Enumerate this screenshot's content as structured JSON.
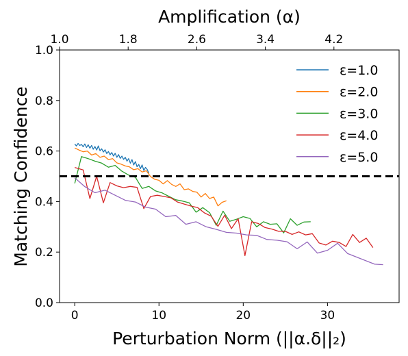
{
  "chart_data": {
    "type": "line",
    "xlabel": "Perturbation Norm (||α.δ||₂)",
    "ylabel": "Matching Confidence",
    "top_xlabel": "Amplification (α)",
    "xlim": [
      -1.8,
      38.5
    ],
    "ylim": [
      0.0,
      1.0
    ],
    "xticks": [
      0,
      10,
      20,
      30
    ],
    "xtick_labels": [
      "0",
      "10",
      "20",
      "30"
    ],
    "yticks": [
      0.0,
      0.2,
      0.4,
      0.6,
      0.8,
      1.0
    ],
    "ytick_labels": [
      "0.0",
      "0.2",
      "0.4",
      "0.6",
      "0.8",
      "1.0"
    ],
    "top_xticks": [
      1.0,
      1.8,
      2.6,
      3.4,
      4.2
    ],
    "top_xtick_labels": [
      "1.0",
      "1.8",
      "2.6",
      "3.4",
      "4.2"
    ],
    "top_xlim": [
      1.0,
      4.96
    ],
    "threshold": {
      "y": 0.5,
      "style": "dashed",
      "color": "#000000"
    },
    "grid": false,
    "legend_position": "top-right",
    "series": [
      {
        "name": "ε=1.0",
        "color": "#1f77b4",
        "points": [
          [
            0.0,
            0.628
          ],
          [
            0.2,
            0.62
          ],
          [
            0.4,
            0.63
          ],
          [
            0.6,
            0.622
          ],
          [
            0.8,
            0.626
          ],
          [
            1.0,
            0.617
          ],
          [
            1.2,
            0.628
          ],
          [
            1.4,
            0.614
          ],
          [
            1.6,
            0.625
          ],
          [
            1.8,
            0.611
          ],
          [
            2.0,
            0.622
          ],
          [
            2.2,
            0.607
          ],
          [
            2.4,
            0.618
          ],
          [
            2.6,
            0.604
          ],
          [
            2.8,
            0.62
          ],
          [
            3.0,
            0.601
          ],
          [
            3.2,
            0.609
          ],
          [
            3.4,
            0.596
          ],
          [
            3.6,
            0.605
          ],
          [
            3.8,
            0.59
          ],
          [
            4.0,
            0.598
          ],
          [
            4.2,
            0.585
          ],
          [
            4.4,
            0.594
          ],
          [
            4.6,
            0.58
          ],
          [
            4.8,
            0.591
          ],
          [
            5.0,
            0.575
          ],
          [
            5.2,
            0.586
          ],
          [
            5.4,
            0.571
          ],
          [
            5.6,
            0.58
          ],
          [
            5.8,
            0.567
          ],
          [
            6.0,
            0.575
          ],
          [
            6.2,
            0.56
          ],
          [
            6.4,
            0.57
          ],
          [
            6.6,
            0.552
          ],
          [
            6.8,
            0.566
          ],
          [
            7.0,
            0.545
          ],
          [
            7.2,
            0.558
          ],
          [
            7.4,
            0.538
          ],
          [
            7.6,
            0.547
          ],
          [
            7.8,
            0.53
          ],
          [
            8.0,
            0.545
          ],
          [
            8.2,
            0.523
          ],
          [
            8.4,
            0.535
          ],
          [
            8.6,
            0.527
          ],
          [
            8.8,
            0.512
          ]
        ]
      },
      {
        "name": "ε=2.0",
        "color": "#ff7f0e",
        "points": [
          [
            0.0,
            0.612
          ],
          [
            0.5,
            0.604
          ],
          [
            1.0,
            0.597
          ],
          [
            1.5,
            0.6
          ],
          [
            2.0,
            0.584
          ],
          [
            2.5,
            0.59
          ],
          [
            3.0,
            0.575
          ],
          [
            3.5,
            0.58
          ],
          [
            4.0,
            0.566
          ],
          [
            4.5,
            0.57
          ],
          [
            5.0,
            0.553
          ],
          [
            5.5,
            0.548
          ],
          [
            6.0,
            0.541
          ],
          [
            6.5,
            0.537
          ],
          [
            7.0,
            0.526
          ],
          [
            7.5,
            0.53
          ],
          [
            8.0,
            0.517
          ],
          [
            8.5,
            0.522
          ],
          [
            9.0,
            0.499
          ],
          [
            9.5,
            0.488
          ],
          [
            10.0,
            0.484
          ],
          [
            10.5,
            0.47
          ],
          [
            11.0,
            0.483
          ],
          [
            11.5,
            0.468
          ],
          [
            12.0,
            0.46
          ],
          [
            12.5,
            0.47
          ],
          [
            13.0,
            0.447
          ],
          [
            13.5,
            0.45
          ],
          [
            14.0,
            0.44
          ],
          [
            14.5,
            0.437
          ],
          [
            15.0,
            0.418
          ],
          [
            15.5,
            0.432
          ],
          [
            16.0,
            0.412
          ],
          [
            16.5,
            0.418
          ],
          [
            17.0,
            0.383
          ],
          [
            17.5,
            0.397
          ],
          [
            18.0,
            0.403
          ]
        ]
      },
      {
        "name": "ε=3.0",
        "color": "#2ca02c",
        "points": [
          [
            0.0,
            0.472
          ],
          [
            0.8,
            0.578
          ],
          [
            1.6,
            0.57
          ],
          [
            2.4,
            0.56
          ],
          [
            3.2,
            0.552
          ],
          [
            4.0,
            0.536
          ],
          [
            4.8,
            0.543
          ],
          [
            5.6,
            0.52
          ],
          [
            6.4,
            0.505
          ],
          [
            7.2,
            0.496
          ],
          [
            8.0,
            0.452
          ],
          [
            8.8,
            0.46
          ],
          [
            9.6,
            0.442
          ],
          [
            10.4,
            0.434
          ],
          [
            11.2,
            0.42
          ],
          [
            12.0,
            0.407
          ],
          [
            12.8,
            0.402
          ],
          [
            13.6,
            0.395
          ],
          [
            14.4,
            0.358
          ],
          [
            15.2,
            0.376
          ],
          [
            16.0,
            0.356
          ],
          [
            16.8,
            0.306
          ],
          [
            17.6,
            0.362
          ],
          [
            18.4,
            0.322
          ],
          [
            19.2,
            0.33
          ],
          [
            20.0,
            0.34
          ],
          [
            20.8,
            0.333
          ],
          [
            21.6,
            0.3
          ],
          [
            22.4,
            0.32
          ],
          [
            23.2,
            0.31
          ],
          [
            24.0,
            0.312
          ],
          [
            24.8,
            0.276
          ],
          [
            25.6,
            0.332
          ],
          [
            26.4,
            0.306
          ],
          [
            27.2,
            0.319
          ],
          [
            28.0,
            0.32
          ]
        ]
      },
      {
        "name": "ε=4.0",
        "color": "#d62728",
        "points": [
          [
            0.0,
            0.535
          ],
          [
            1.0,
            0.525
          ],
          [
            1.8,
            0.412
          ],
          [
            2.6,
            0.5
          ],
          [
            3.4,
            0.395
          ],
          [
            4.2,
            0.475
          ],
          [
            5.0,
            0.462
          ],
          [
            5.8,
            0.455
          ],
          [
            6.6,
            0.46
          ],
          [
            7.4,
            0.456
          ],
          [
            8.2,
            0.372
          ],
          [
            9.0,
            0.42
          ],
          [
            9.8,
            0.425
          ],
          [
            10.6,
            0.42
          ],
          [
            11.4,
            0.415
          ],
          [
            12.2,
            0.398
          ],
          [
            13.0,
            0.39
          ],
          [
            13.8,
            0.382
          ],
          [
            14.6,
            0.376
          ],
          [
            15.4,
            0.355
          ],
          [
            16.2,
            0.342
          ],
          [
            17.0,
            0.302
          ],
          [
            17.8,
            0.346
          ],
          [
            18.6,
            0.293
          ],
          [
            19.4,
            0.332
          ],
          [
            20.2,
            0.186
          ],
          [
            21.0,
            0.32
          ],
          [
            21.8,
            0.313
          ],
          [
            22.6,
            0.297
          ],
          [
            23.4,
            0.291
          ],
          [
            24.2,
            0.282
          ],
          [
            25.0,
            0.282
          ],
          [
            25.8,
            0.27
          ],
          [
            26.6,
            0.28
          ],
          [
            27.4,
            0.268
          ],
          [
            28.2,
            0.273
          ],
          [
            29.0,
            0.236
          ],
          [
            29.8,
            0.228
          ],
          [
            30.6,
            0.243
          ],
          [
            31.4,
            0.238
          ],
          [
            32.2,
            0.222
          ],
          [
            33.0,
            0.27
          ],
          [
            33.8,
            0.238
          ],
          [
            34.6,
            0.255
          ],
          [
            35.4,
            0.218
          ]
        ]
      },
      {
        "name": "ε=5.0",
        "color": "#9467bd",
        "points": [
          [
            0.0,
            0.494
          ],
          [
            1.2,
            0.459
          ],
          [
            2.4,
            0.435
          ],
          [
            3.6,
            0.445
          ],
          [
            4.8,
            0.425
          ],
          [
            6.0,
            0.405
          ],
          [
            7.2,
            0.398
          ],
          [
            8.4,
            0.378
          ],
          [
            9.6,
            0.37
          ],
          [
            10.8,
            0.34
          ],
          [
            12.0,
            0.345
          ],
          [
            13.2,
            0.31
          ],
          [
            14.4,
            0.32
          ],
          [
            15.6,
            0.3
          ],
          [
            16.8,
            0.29
          ],
          [
            18.0,
            0.278
          ],
          [
            19.2,
            0.275
          ],
          [
            20.4,
            0.268
          ],
          [
            21.6,
            0.266
          ],
          [
            22.8,
            0.25
          ],
          [
            24.0,
            0.247
          ],
          [
            25.2,
            0.241
          ],
          [
            26.4,
            0.213
          ],
          [
            27.6,
            0.24
          ],
          [
            28.8,
            0.196
          ],
          [
            30.0,
            0.207
          ],
          [
            31.2,
            0.235
          ],
          [
            32.4,
            0.194
          ],
          [
            35.6,
            0.152
          ],
          [
            36.6,
            0.15
          ]
        ]
      }
    ]
  }
}
